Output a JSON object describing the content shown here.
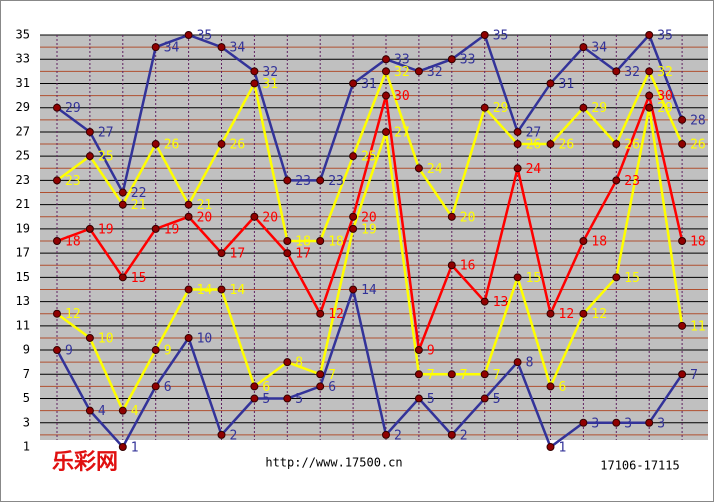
{
  "chart_data": {
    "type": "line",
    "categories": [
      null,
      null,
      null,
      null,
      null,
      null,
      null,
      null,
      null,
      null,
      null,
      null,
      null,
      null,
      null,
      null,
      null,
      null,
      null,
      null
    ],
    "series": [
      {
        "color": "#333399",
        "values": [
          29,
          27,
          22,
          34,
          35,
          34,
          32,
          23,
          23,
          31,
          33,
          32,
          33,
          35,
          27,
          31,
          34,
          32,
          35,
          28
        ]
      },
      {
        "color": "#ffff00",
        "values": [
          23,
          25,
          21,
          26,
          21,
          26,
          31,
          18,
          18,
          25,
          32,
          24,
          20,
          29,
          26,
          26,
          29,
          26,
          32,
          26
        ]
      },
      {
        "color": "#ff0000",
        "values": [
          18,
          19,
          15,
          19,
          20,
          17,
          20,
          17,
          12,
          20,
          30,
          9,
          16,
          13,
          24,
          12,
          18,
          23,
          30,
          18
        ]
      },
      {
        "color": "#ffff00",
        "values": [
          12,
          10,
          4,
          9,
          14,
          14,
          6,
          8,
          7,
          19,
          27,
          7,
          7,
          7,
          15,
          6,
          12,
          15,
          29,
          11
        ]
      },
      {
        "color": "#333399",
        "values": [
          9,
          4,
          1,
          6,
          10,
          2,
          5,
          5,
          6,
          14,
          2,
          5,
          2,
          5,
          8,
          1,
          3,
          3,
          3,
          7
        ]
      }
    ],
    "ylim": [
      1,
      35
    ],
    "yticks": [
      1,
      3,
      5,
      7,
      9,
      11,
      13,
      15,
      17,
      19,
      21,
      23,
      25,
      27,
      29,
      31,
      33,
      35
    ],
    "grid": true,
    "logo": "乐彩网",
    "source": "http://www.17500.cn",
    "period": "17106-17115"
  }
}
